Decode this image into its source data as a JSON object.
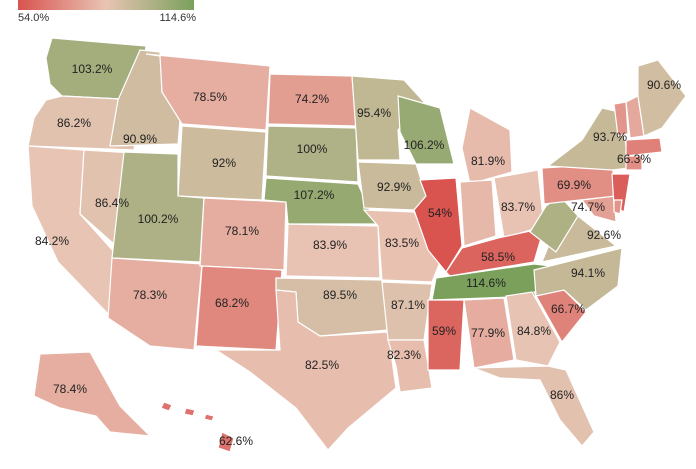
{
  "legend": {
    "min_label": "54.0%",
    "max_label": "114.6%",
    "min": 54.0,
    "max": 114.6,
    "colors": {
      "low": "#d9534f",
      "mid": "#e8c4b4",
      "high": "#7aa05b"
    }
  },
  "states": {
    "WA": {
      "label": "103.2%",
      "value": 103.2
    },
    "OR": {
      "label": "86.2%",
      "value": 86.2
    },
    "CA": {
      "label": "84.2%",
      "value": 84.2
    },
    "NV": {
      "label": "86.4%",
      "value": 86.4
    },
    "ID": {
      "label": "90.9%",
      "value": 90.9
    },
    "MT": {
      "label": "78.5%",
      "value": 78.5
    },
    "WY": {
      "label": "92%",
      "value": 92
    },
    "UT": {
      "label": "100.2%",
      "value": 100.2
    },
    "AZ": {
      "label": "78.3%",
      "value": 78.3
    },
    "CO": {
      "label": "78.1%",
      "value": 78.1
    },
    "NM": {
      "label": "68.2%",
      "value": 68.2
    },
    "ND": {
      "label": "74.2%",
      "value": 74.2
    },
    "SD": {
      "label": "100%",
      "value": 100
    },
    "NE": {
      "label": "107.2%",
      "value": 107.2
    },
    "KS": {
      "label": "83.9%",
      "value": 83.9
    },
    "OK": {
      "label": "89.5%",
      "value": 89.5
    },
    "TX": {
      "label": "82.5%",
      "value": 82.5
    },
    "MN": {
      "label": "95.4%",
      "value": 95.4
    },
    "IA": {
      "label": "92.9%",
      "value": 92.9
    },
    "MO": {
      "label": "83.5%",
      "value": 83.5
    },
    "AR": {
      "label": "87.1%",
      "value": 87.1
    },
    "LA": {
      "label": "82.3%",
      "value": 82.3
    },
    "WI": {
      "label": "106.2%",
      "value": 106.2
    },
    "IL": {
      "label": "54%",
      "value": 54
    },
    "MI": {
      "label": "81.9%",
      "value": 81.9
    },
    "IN": {
      "label": "",
      "value": 81.0
    },
    "OH": {
      "label": "83.7%",
      "value": 83.7
    },
    "KY": {
      "label": "58.5%",
      "value": 58.5
    },
    "TN": {
      "label": "114.6%",
      "value": 114.6
    },
    "MS": {
      "label": "59%",
      "value": 59
    },
    "AL": {
      "label": "77.9%",
      "value": 77.9
    },
    "GA": {
      "label": "84.8%",
      "value": 84.8
    },
    "FL": {
      "label": "86%",
      "value": 86
    },
    "SC": {
      "label": "66.7%",
      "value": 66.7
    },
    "NC": {
      "label": "94.1%",
      "value": 94.1
    },
    "VA": {
      "label": "92.6%",
      "value": 92.6
    },
    "WV": {
      "label": "",
      "value": 100.5
    },
    "MD": {
      "label": "74.7%",
      "value": 74.7
    },
    "PA": {
      "label": "69.9%",
      "value": 69.9
    },
    "NJ": {
      "label": "",
      "value": 57.0
    },
    "NY": {
      "label": "93.7%",
      "value": 93.7
    },
    "VT": {
      "label": "",
      "value": 72.0
    },
    "NH": {
      "label": "",
      "value": 77.0
    },
    "ME": {
      "label": "90.6%",
      "value": 90.6
    },
    "MA": {
      "label": "66.3%",
      "value": 66.3
    },
    "CT": {
      "label": "",
      "value": 70.0
    },
    "DE": {
      "label": "",
      "value": 72.0
    },
    "AK": {
      "label": "78.4%",
      "value": 78.4
    },
    "HI": {
      "label": "62.6%",
      "value": 62.6
    }
  }
}
